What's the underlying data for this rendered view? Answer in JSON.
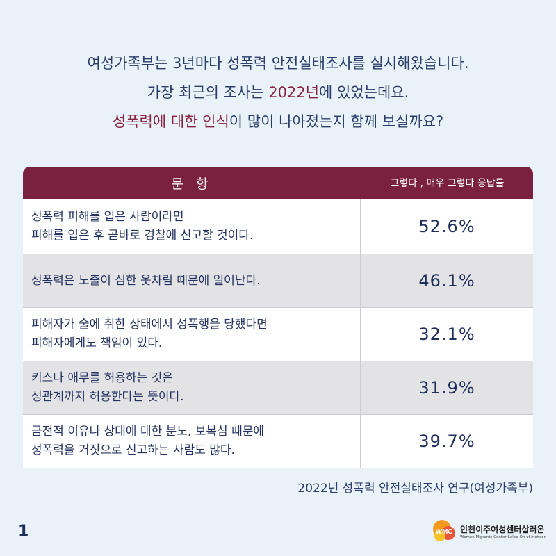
{
  "intro": {
    "line1": "여성가족부는 3년마다 성폭력 안전실태조사를 실시해왔습니다.",
    "line2_pre": "가장 최근의 조사는 ",
    "line2_hl": "2022년",
    "line2_post": "에 있었는데요.",
    "line3_hl": "성폭력에 대한 인식",
    "line3_post": "이 많이 나아졌는지 함께 보실까요?"
  },
  "table": {
    "header_question": "문 항",
    "header_rate": "그렇다 , 매우 그렇다 응답률",
    "rows": [
      {
        "line1": "성폭력 피해를 입은 사람이라면",
        "line2": "피해를 입은 후 곧바로 경찰에 신고할 것이다.",
        "rate": "52.6%"
      },
      {
        "line1": "성폭력은 노출이 심한 옷차림 때문에 일어난다.",
        "line2": "",
        "rate": "46.1%"
      },
      {
        "line1": "피해자가 술에 취한 상태에서 성폭행을 당했다면",
        "line2": "피해자에게도 책임이 있다.",
        "rate": "32.1%"
      },
      {
        "line1": "키스나 애무를 허용하는 것은",
        "line2": "성관계까지 허용한다는 뜻이다.",
        "rate": "31.9%"
      },
      {
        "line1": "금전적 이유나 상대에 대한 분노, 보복심 때문에",
        "line2": "성폭력을 거짓으로 신고하는 사람도 많다.",
        "rate": "39.7%"
      }
    ]
  },
  "source": "2022년 성폭력 안전실태조사 연구(여성가족부)",
  "page_number": "1",
  "logo": {
    "name": "인천이주여성센터살러온",
    "subtitle": "Women Migrants Center Salee-On of Incheon",
    "mark_text": "WMC"
  },
  "colors": {
    "background": "#e9f2f8",
    "header": "#7a2140",
    "highlight": "#8a2241",
    "text": "#1f2f5c"
  }
}
